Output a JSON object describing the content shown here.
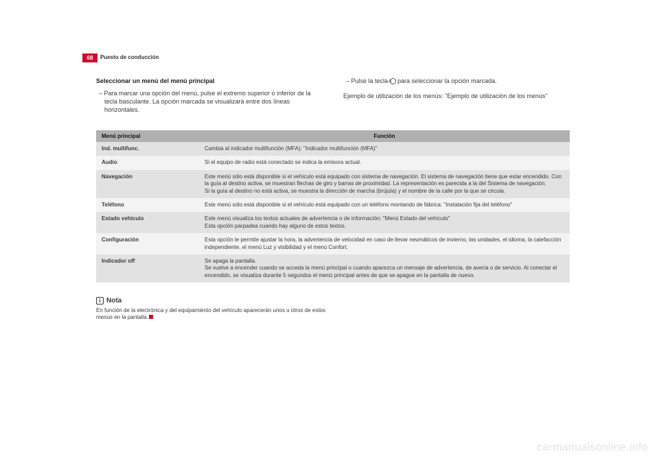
{
  "header": {
    "page_number": "68",
    "section": "Puesto de conducción"
  },
  "left_col": {
    "heading": "Seleccionar un menú del menú principal",
    "body": "–  Para marcar una opción del menú, pulse el extremo superior o inferior de la tecla basculante. La opción marcada se visualizará entre dos líneas horizontales."
  },
  "right_col": {
    "line1_a": "–  Pulse la tecla ",
    "line1_key": "A",
    "line1_b": " para seleccionar la opción marcada.",
    "line2": "Ejemplo de utilización de los menús: \"Ejemplo de utilización de los menús\""
  },
  "table": {
    "columns": [
      "Menú principal",
      "Función"
    ],
    "rows": [
      {
        "menu": "Ind. multifunc.",
        "func": "Cambia al indicador multifunción (MFA): \"Indicador multifunción (MFA)\""
      },
      {
        "menu": "Audio",
        "func": "Si el equipo de radio está conectado se indica la emisora actual."
      },
      {
        "menu": "Navegación",
        "func": "Este menú sólo está disponible si el vehículo está equipado con sistema de navegación. El sistema de navegación tiene que estar encendido. Con la guía al destino activa, se muestran flechas de giro y barras de proximidad. La representación es parecida a la del Sistema de navegación.\nSi la guía al destino no está activa, se muestra la dirección de marcha (brújula) y el nombre de la calle por la que se circula."
      },
      {
        "menu": "Teléfono",
        "func": "Este menú sólo está disponible si el vehículo está equipado con un teléfono montando de fábrica: \"Instalación fija del teléfono\""
      },
      {
        "menu": "Estado vehículo",
        "func": "Este menú visualiza los textos actuales de advertencia o de información: \"Menú Estado del vehículo\"\nEsta opción parpadea cuando hay alguno de estos textos."
      },
      {
        "menu": "Configuración",
        "func": "Esta opción le permite ajustar la hora, la advertencia de velocidad en caso de llevar neumáticos de invierno, las unidades, el idioma, la calefacción independiente, el menú Luz y visibilidad y el menú Confort."
      },
      {
        "menu": "Indicador off",
        "func": "Se apaga la pantalla.\nSe vuelve a encender cuando se acceda la menú principal o cuando aparezca un mensaje de advertencia, de avería o de servicio. Al conectar el encendido, se visualiza durante 5 segundos el menú principal antes de que se apague en la pantalla de nuevo."
      }
    ]
  },
  "nota": {
    "label": "Nota",
    "body": "En función de la electrónica y del equipamiento del vehículo aparecerán unos u otros de estos menús en la pantalla."
  },
  "watermark": "carmanualsonline.info",
  "colors": {
    "accent": "#c8102e",
    "th_bg": "#b0b0b0",
    "row_dark": "#e2e2e2",
    "row_light": "#f3f3f3",
    "watermark": "#e3e3e3"
  }
}
